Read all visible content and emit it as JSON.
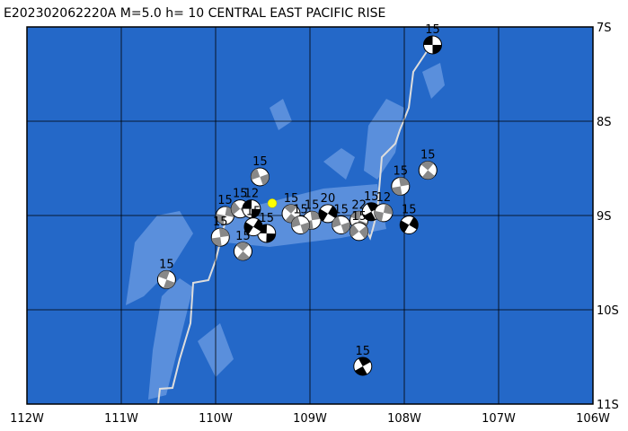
{
  "title": "E202302062220A M=5.0 h= 10 CENTRAL EAST PACIFIC RISE",
  "map": {
    "lonlim": [
      -112,
      -106
    ],
    "latlim": [
      -7,
      -11
    ],
    "lonticks": [
      {
        "value": -112,
        "label": "112W"
      },
      {
        "value": -111,
        "label": "111W"
      },
      {
        "value": -110,
        "label": "110W"
      },
      {
        "value": -109,
        "label": "109W"
      },
      {
        "value": -108,
        "label": "108W"
      },
      {
        "value": -107,
        "label": "107W"
      },
      {
        "value": -106,
        "label": "106W"
      }
    ],
    "latticks": [
      {
        "value": -7,
        "label": "7S"
      },
      {
        "value": -8,
        "label": "8S"
      },
      {
        "value": -9,
        "label": "9S"
      },
      {
        "value": -10,
        "label": "10S"
      },
      {
        "value": -11,
        "label": "11S"
      }
    ],
    "ocean_color": "#2468c8",
    "epicenter": {
      "lon": -109.4,
      "lat": -8.87,
      "color": "#ffff00"
    }
  },
  "events": [
    {
      "lon": -107.7,
      "lat": -7.19,
      "depth": "15"
    },
    {
      "lon": -107.75,
      "lat": -8.52,
      "depth": "15"
    },
    {
      "lon": -108.04,
      "lat": -8.69,
      "depth": "15"
    },
    {
      "lon": -107.95,
      "lat": -9.1,
      "depth": "15"
    },
    {
      "lon": -109.53,
      "lat": -8.59,
      "depth": "15"
    },
    {
      "lon": -110.52,
      "lat": -9.68,
      "depth": "15"
    },
    {
      "lon": -108.44,
      "lat": -10.6,
      "depth": "15"
    },
    {
      "lon": -109.9,
      "lat": -9.0,
      "depth": "15"
    },
    {
      "lon": -109.74,
      "lat": -8.93,
      "depth": "15"
    },
    {
      "lon": -109.62,
      "lat": -8.93,
      "depth": "12"
    },
    {
      "lon": -109.2,
      "lat": -8.98,
      "depth": "15"
    },
    {
      "lon": -108.98,
      "lat": -9.05,
      "depth": "15"
    },
    {
      "lon": -108.81,
      "lat": -8.98,
      "depth": "20"
    },
    {
      "lon": -108.67,
      "lat": -9.1,
      "depth": "15"
    },
    {
      "lon": -108.48,
      "lat": -9.05,
      "depth": "22"
    },
    {
      "lon": -108.35,
      "lat": -8.96,
      "depth": "15"
    },
    {
      "lon": -108.22,
      "lat": -8.97,
      "depth": "12"
    },
    {
      "lon": -108.48,
      "lat": -9.17,
      "depth": "15"
    },
    {
      "lon": -109.46,
      "lat": -9.19,
      "depth": "15"
    },
    {
      "lon": -109.71,
      "lat": -9.38,
      "depth": "15"
    },
    {
      "lon": -109.95,
      "lat": -9.23,
      "depth": "15"
    },
    {
      "lon": -109.6,
      "lat": -9.12,
      "depth": "15"
    },
    {
      "lon": -109.1,
      "lat": -9.1,
      "depth": "15"
    }
  ]
}
